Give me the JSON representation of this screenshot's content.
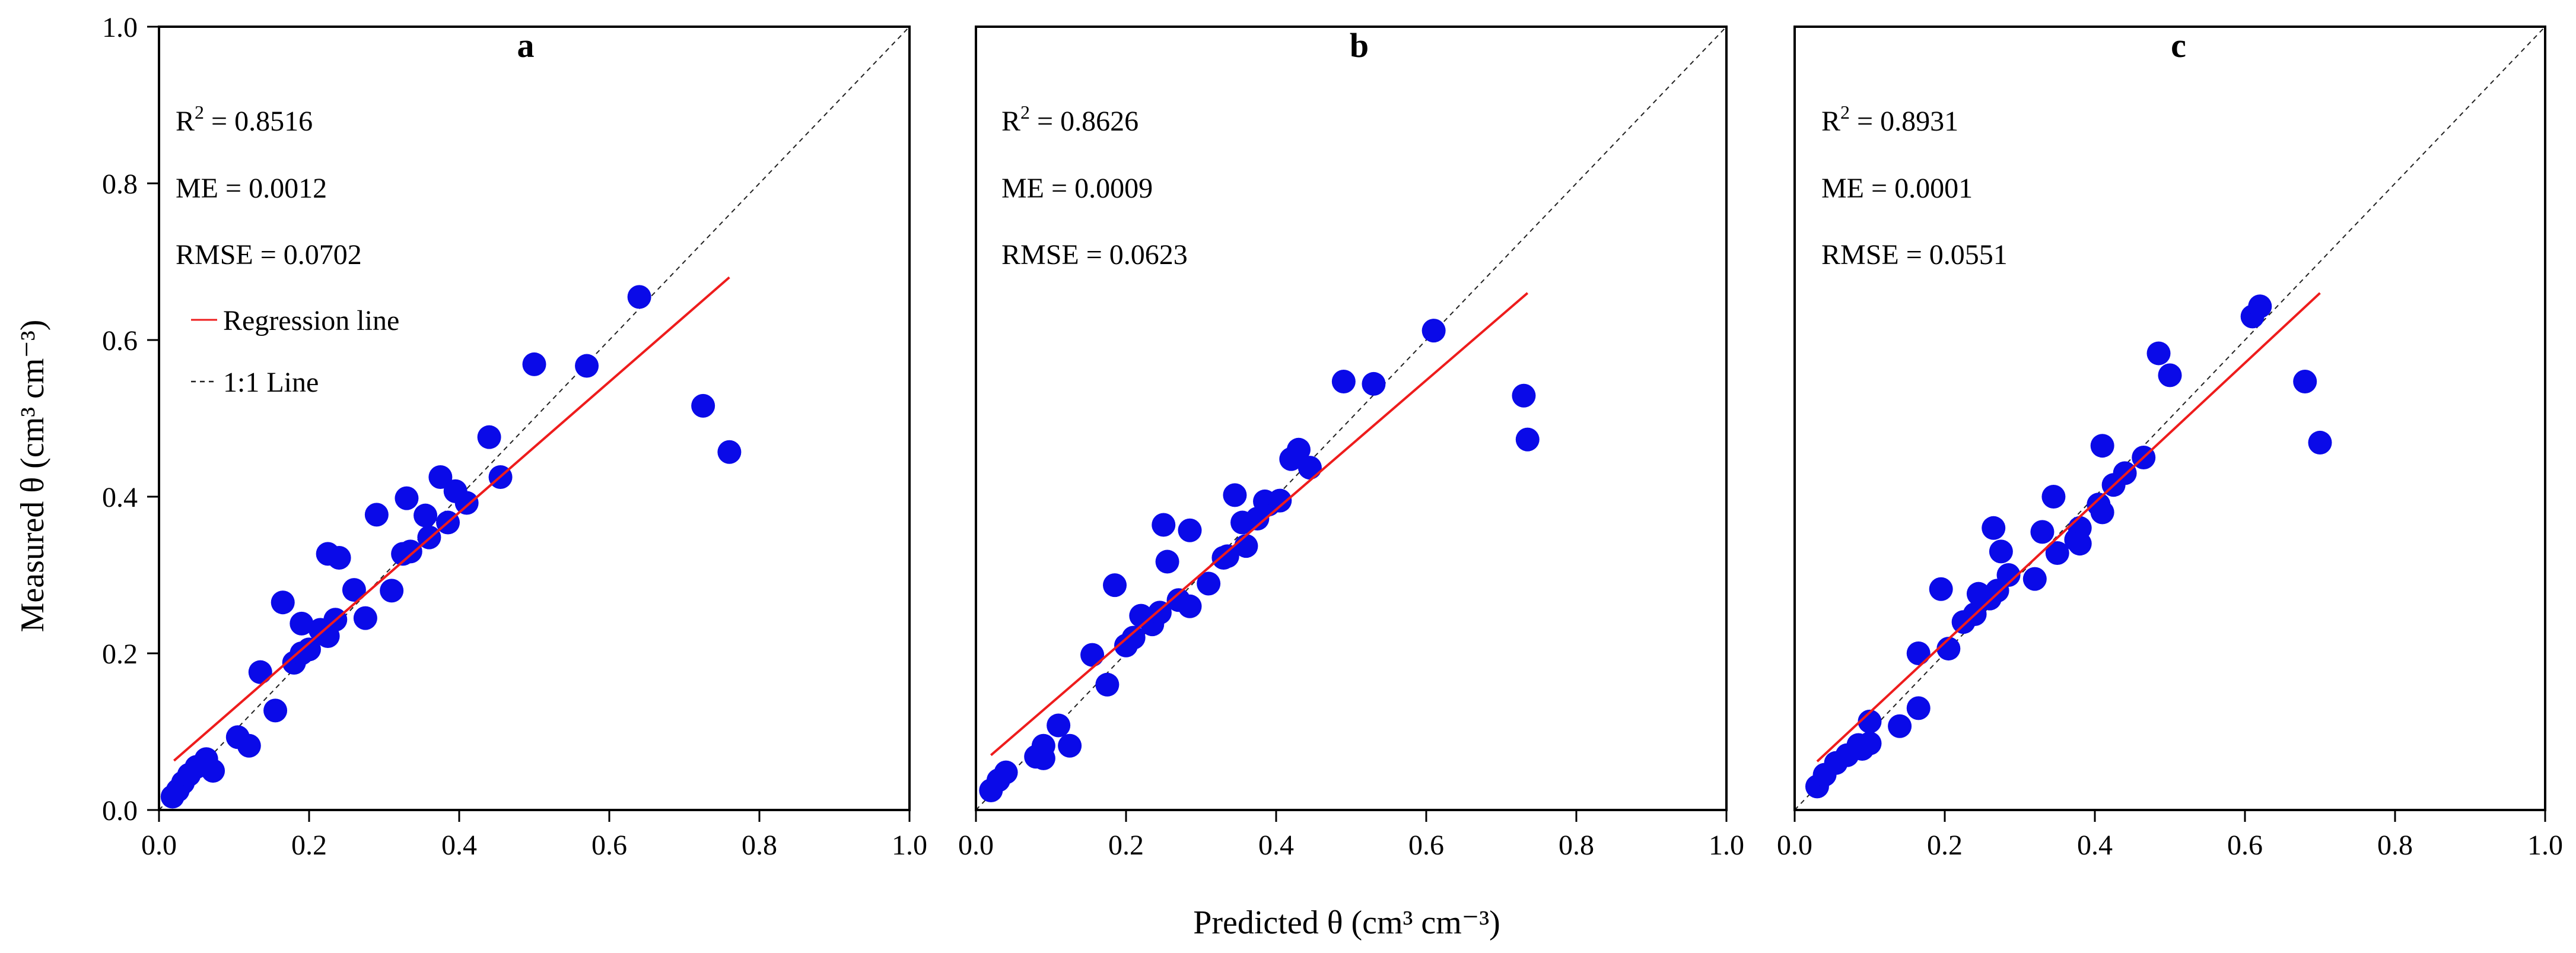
{
  "figure": {
    "xlabel": "Predicted θ (cm³ cm⁻³)",
    "ylabel": "Measured θ (cm³ cm⁻³)"
  },
  "colors": {
    "points": "#0a0ae8",
    "regression": "#ee1c1c",
    "identity": "#222222",
    "axes": "#000000"
  },
  "legend": {
    "regression_label": "Regression line",
    "identity_label": "1:1 Line",
    "placement": "upper-left of panel a"
  },
  "chart_data": [
    {
      "type": "scatter",
      "panel_label": "a",
      "xlim": [
        0,
        1.0
      ],
      "ylim": [
        0,
        1.0
      ],
      "xticks": [
        "0.0",
        "0.2",
        "0.4",
        "0.6",
        "0.8",
        "1.0"
      ],
      "yticks": [
        "0.0",
        "0.2",
        "0.4",
        "0.6",
        "0.8",
        "1.0"
      ],
      "stats": {
        "r2_value": "0.8516",
        "me_text": "ME = 0.0012",
        "rmse_text": "RMSE = 0.0702"
      },
      "regression": {
        "x": [
          0.02,
          0.76
        ],
        "y": [
          0.063,
          0.68
        ]
      },
      "x": [
        0.018,
        0.025,
        0.032,
        0.04,
        0.05,
        0.063,
        0.072,
        0.105,
        0.12,
        0.135,
        0.155,
        0.165,
        0.18,
        0.19,
        0.2,
        0.215,
        0.225,
        0.225,
        0.235,
        0.24,
        0.26,
        0.275,
        0.29,
        0.31,
        0.325,
        0.33,
        0.335,
        0.355,
        0.36,
        0.375,
        0.385,
        0.395,
        0.41,
        0.44,
        0.455,
        0.5,
        0.57,
        0.64,
        0.725,
        0.76,
        0.19
      ],
      "y": [
        0.017,
        0.025,
        0.035,
        0.045,
        0.055,
        0.065,
        0.05,
        0.093,
        0.082,
        0.176,
        0.127,
        0.265,
        0.188,
        0.238,
        0.205,
        0.23,
        0.222,
        0.327,
        0.243,
        0.322,
        0.281,
        0.245,
        0.377,
        0.28,
        0.327,
        0.398,
        0.33,
        0.376,
        0.348,
        0.425,
        0.367,
        0.407,
        0.392,
        0.476,
        0.425,
        0.569,
        0.567,
        0.655,
        0.516,
        0.457,
        0.2
      ]
    },
    {
      "type": "scatter",
      "panel_label": "b",
      "xlim": [
        0,
        1.0
      ],
      "ylim": [
        0,
        1.0
      ],
      "xticks": [
        "0.0",
        "0.2",
        "0.4",
        "0.6",
        "0.8",
        "1.0"
      ],
      "yticks": [],
      "stats": {
        "r2_value": "0.8626",
        "me_text": "ME = 0.0009",
        "rmse_text": "RMSE = 0.0623"
      },
      "regression": {
        "x": [
          0.02,
          0.735
        ],
        "y": [
          0.07,
          0.66
        ]
      },
      "x": [
        0.02,
        0.03,
        0.04,
        0.08,
        0.09,
        0.09,
        0.11,
        0.125,
        0.155,
        0.175,
        0.185,
        0.2,
        0.21,
        0.22,
        0.235,
        0.245,
        0.25,
        0.255,
        0.27,
        0.285,
        0.285,
        0.31,
        0.33,
        0.335,
        0.345,
        0.355,
        0.36,
        0.375,
        0.385,
        0.39,
        0.405,
        0.42,
        0.43,
        0.445,
        0.49,
        0.53,
        0.61,
        0.73,
        0.735
      ],
      "y": [
        0.025,
        0.038,
        0.048,
        0.068,
        0.082,
        0.066,
        0.108,
        0.082,
        0.198,
        0.16,
        0.287,
        0.21,
        0.22,
        0.248,
        0.237,
        0.252,
        0.364,
        0.317,
        0.268,
        0.357,
        0.26,
        0.289,
        0.322,
        0.324,
        0.402,
        0.367,
        0.337,
        0.372,
        0.394,
        0.39,
        0.395,
        0.448,
        0.46,
        0.437,
        0.547,
        0.544,
        0.612,
        0.529,
        0.473
      ]
    },
    {
      "type": "scatter",
      "panel_label": "c",
      "xlim": [
        0,
        1.0
      ],
      "ylim": [
        0,
        1.0
      ],
      "xticks": [
        "0.0",
        "0.2",
        "0.4",
        "0.6",
        "0.8",
        "1.0"
      ],
      "yticks": [],
      "stats": {
        "r2_value": "0.8931",
        "me_text": "ME = 0.0001",
        "rmse_text": "RMSE = 0.0551"
      },
      "regression": {
        "x": [
          0.03,
          0.7
        ],
        "y": [
          0.062,
          0.66
        ]
      },
      "x": [
        0.03,
        0.04,
        0.055,
        0.07,
        0.085,
        0.1,
        0.1,
        0.14,
        0.165,
        0.165,
        0.195,
        0.205,
        0.225,
        0.24,
        0.245,
        0.26,
        0.265,
        0.27,
        0.275,
        0.285,
        0.32,
        0.33,
        0.345,
        0.35,
        0.375,
        0.38,
        0.38,
        0.405,
        0.41,
        0.41,
        0.425,
        0.44,
        0.465,
        0.485,
        0.5,
        0.61,
        0.62,
        0.68,
        0.7,
        0.09
      ],
      "y": [
        0.03,
        0.045,
        0.06,
        0.07,
        0.083,
        0.113,
        0.085,
        0.107,
        0.13,
        0.2,
        0.282,
        0.206,
        0.24,
        0.25,
        0.276,
        0.27,
        0.36,
        0.28,
        0.33,
        0.3,
        0.295,
        0.355,
        0.4,
        0.328,
        0.345,
        0.36,
        0.34,
        0.39,
        0.38,
        0.465,
        0.415,
        0.43,
        0.45,
        0.583,
        0.555,
        0.63,
        0.643,
        0.547,
        0.469,
        0.078
      ]
    }
  ]
}
